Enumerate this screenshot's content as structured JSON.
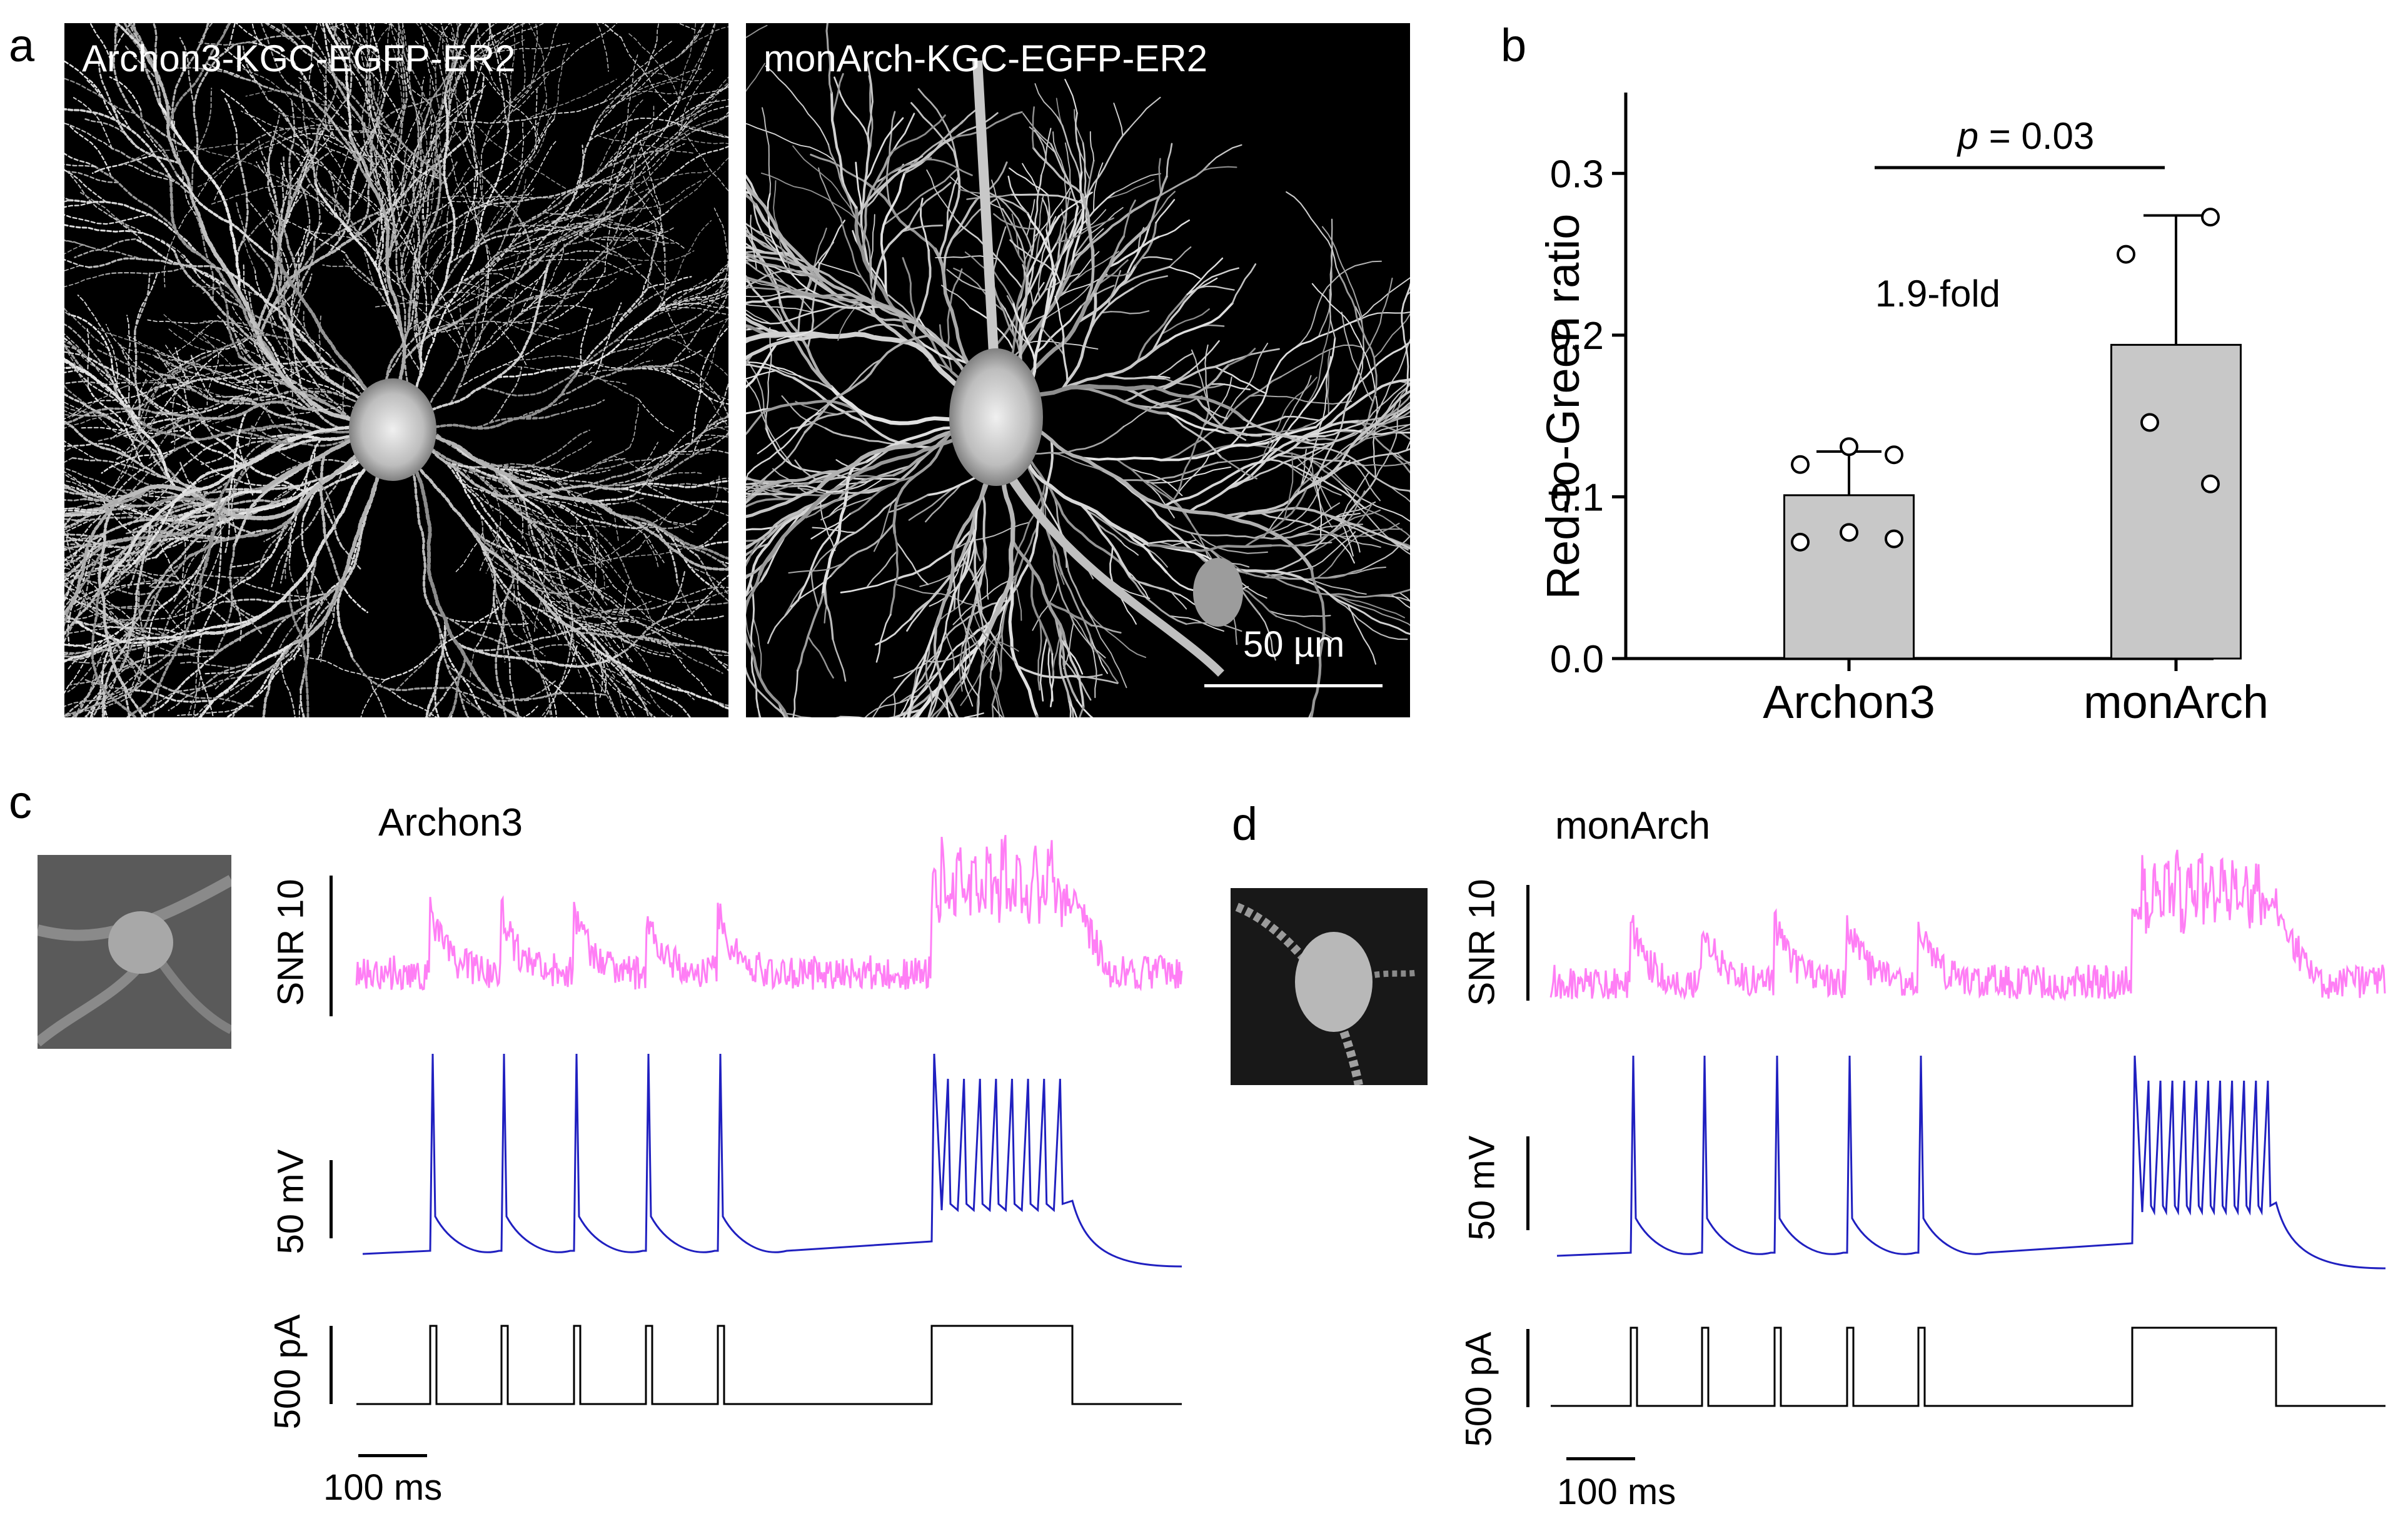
{
  "panels": {
    "a": "a",
    "b": "b",
    "c": "c",
    "d": "d"
  },
  "micrographs": {
    "left_label": "Archon3-KGC-EGFP-ER2",
    "right_label": "monArch-KGC-EGFP-ER2",
    "scale_label": "50 µm"
  },
  "chart_data": {
    "type": "bar",
    "categories": [
      "Archon3",
      "monArch"
    ],
    "values": [
      0.101,
      0.194
    ],
    "errors": [
      0.027,
      0.08
    ],
    "points": [
      [
        0.12,
        0.131,
        0.126,
        0.072,
        0.078,
        0.074
      ],
      [
        0.25,
        0.273,
        0.146,
        0.108
      ]
    ],
    "ylabel": "Red-to-Green ratio",
    "ylim": [
      0,
      0.35
    ],
    "yticks": [
      "0.0",
      "0.1",
      "0.2",
      "0.3"
    ],
    "ytick_values": [
      0,
      0.1,
      0.2,
      0.3
    ],
    "bar_color": "#c8c8c8",
    "annotation_p_italic": "p",
    "annotation_p_value": " = 0.03",
    "annotation_fold": "1.9-fold"
  },
  "traces": {
    "c_title": "Archon3",
    "d_title": "monArch",
    "snr_label": "SNR 10",
    "mv_label": "50 mV",
    "pa_label": "500 pA",
    "time_label": "100 ms",
    "fluor_color": "#ff7ef5",
    "voltage_color": "#2020c0",
    "current_color": "#000000"
  }
}
